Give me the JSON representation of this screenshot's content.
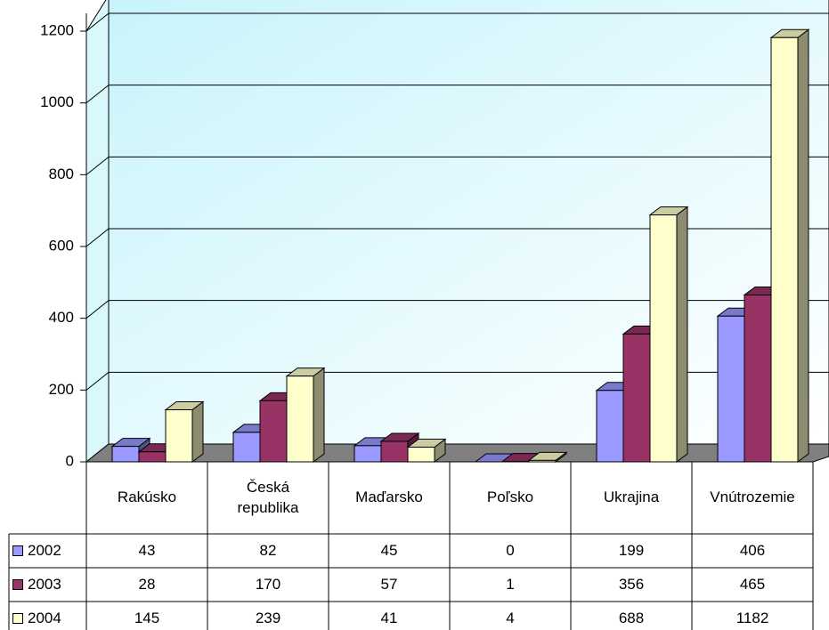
{
  "chart_data": {
    "type": "bar3d",
    "categories": [
      "Rakúsko",
      "Česká republika",
      "Maďarsko",
      "Poľsko",
      "Ukrajina",
      "Vnútrozemie"
    ],
    "series": [
      {
        "name": "2002",
        "color": "#9999ff",
        "values": [
          43,
          82,
          45,
          0,
          199,
          406
        ]
      },
      {
        "name": "2003",
        "color": "#993366",
        "values": [
          28,
          170,
          57,
          1,
          356,
          465
        ]
      },
      {
        "name": "2004",
        "color": "#ffffcc",
        "values": [
          145,
          239,
          41,
          4,
          688,
          1182
        ]
      }
    ],
    "ylim": [
      0,
      1200
    ],
    "yticks": [
      0,
      200,
      400,
      600,
      800,
      1000,
      1200
    ],
    "grid": true
  }
}
